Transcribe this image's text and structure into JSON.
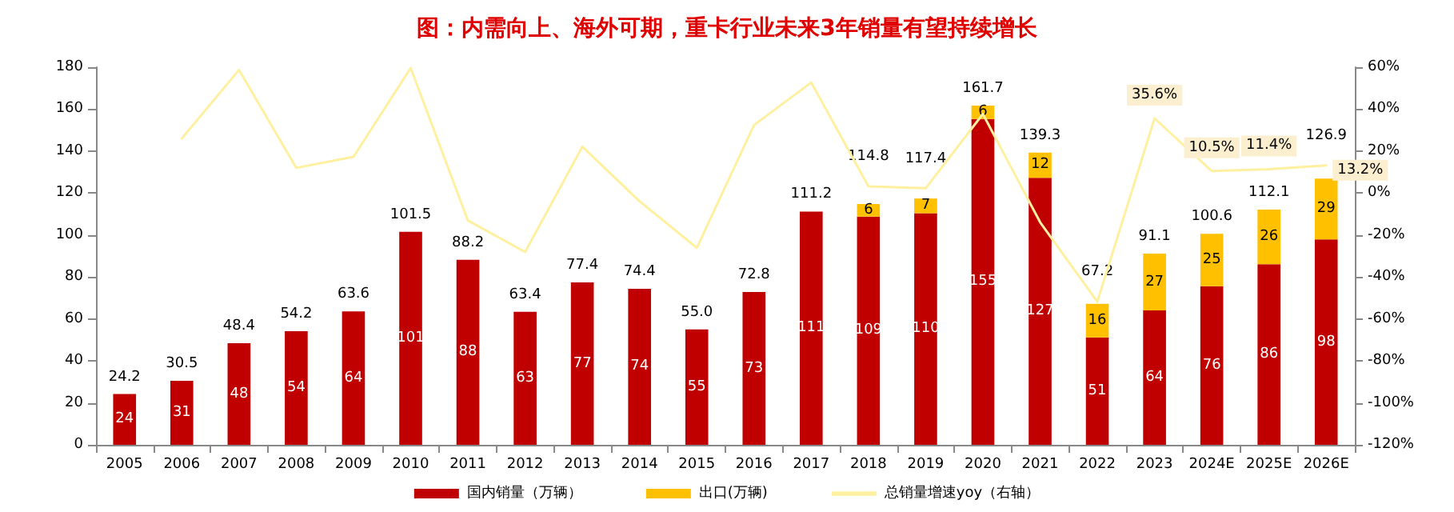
{
  "chart_data": {
    "type": "bar",
    "title": "图：内需向上、海外可期，重卡行业未来3年销量有望持续增长",
    "categories": [
      "2005",
      "2006",
      "2007",
      "2008",
      "2009",
      "2010",
      "2011",
      "2012",
      "2013",
      "2014",
      "2015",
      "2016",
      "2017",
      "2018",
      "2019",
      "2020",
      "2021",
      "2022",
      "2023",
      "2024E",
      "2025E",
      "2026E"
    ],
    "stacked": true,
    "series": [
      {
        "name": "国内销量（万辆）",
        "color": "#c00000",
        "values": [
          24.2,
          30.5,
          48.4,
          54.2,
          63.6,
          101.5,
          88.2,
          63.4,
          77.4,
          74.4,
          55.0,
          72.8,
          111.2,
          108.8,
          110.4,
          155.3,
          127.3,
          51.2,
          64.1,
          75.6,
          86.1,
          97.9
        ],
        "value_labels": [
          "24",
          "31",
          "48",
          "54",
          "64",
          "101",
          "88",
          "63",
          "77",
          "74",
          "55",
          "73",
          "111",
          "109",
          "110",
          "155",
          "127",
          "51",
          "64",
          "76",
          "86",
          "98"
        ]
      },
      {
        "name": "出口(万辆)",
        "color": "#ffc000",
        "values": [
          null,
          null,
          null,
          null,
          null,
          null,
          null,
          null,
          null,
          null,
          null,
          null,
          null,
          6,
          7,
          6.4,
          12,
          16,
          27,
          25,
          26,
          29
        ],
        "value_labels": [
          null,
          null,
          null,
          null,
          null,
          null,
          null,
          null,
          null,
          null,
          null,
          null,
          null,
          "6",
          "7",
          "6",
          "12",
          "16",
          "27",
          "25",
          "26",
          "29"
        ]
      },
      {
        "name": "总销量增速yoy（右轴）",
        "type": "line",
        "axis": "y2",
        "color": "#fff0a0",
        "values": [
          null,
          26,
          58.7,
          12,
          17.3,
          59.6,
          -13.1,
          -28.1,
          22.1,
          -3.9,
          -26.1,
          32.4,
          52.7,
          3.2,
          2.3,
          37.7,
          -13.9,
          -51.8,
          35.6,
          10.5,
          11.4,
          13.2
        ],
        "value_labels": [
          null,
          null,
          null,
          null,
          null,
          null,
          null,
          null,
          null,
          null,
          null,
          null,
          null,
          null,
          null,
          null,
          null,
          null,
          "35.6%",
          "10.5%",
          "11.4%",
          "13.2%"
        ]
      }
    ],
    "totals": [
      "24.2",
      "30.5",
      "48.4",
      "54.2",
      "63.6",
      "101.5",
      "88.2",
      "63.4",
      "77.4",
      "74.4",
      "55.0",
      "72.8",
      "111.2",
      "114.8",
      "117.4",
      "161.7",
      "139.3",
      "67.2",
      "91.1",
      "100.6",
      "112.1",
      "126.9"
    ],
    "ylim": [
      0,
      180
    ],
    "yticks": [
      0,
      20,
      40,
      60,
      80,
      100,
      120,
      140,
      160,
      180
    ],
    "y2lim": [
      -120,
      60
    ],
    "y2ticks": [
      {
        "value": -120,
        "label": "-120%"
      },
      {
        "value": -100,
        "label": "-100%"
      },
      {
        "value": -80,
        "label": "-80%"
      },
      {
        "value": -60,
        "label": "-60%"
      },
      {
        "value": -40,
        "label": "-40%"
      },
      {
        "value": -20,
        "label": "-20%"
      },
      {
        "value": 0,
        "label": "0%"
      },
      {
        "value": 20,
        "label": "20%"
      },
      {
        "value": 40,
        "label": "40%"
      },
      {
        "value": 60,
        "label": "60%"
      }
    ],
    "grid": false,
    "legend": "bottom",
    "marker": "none",
    "line_style": "solid"
  }
}
